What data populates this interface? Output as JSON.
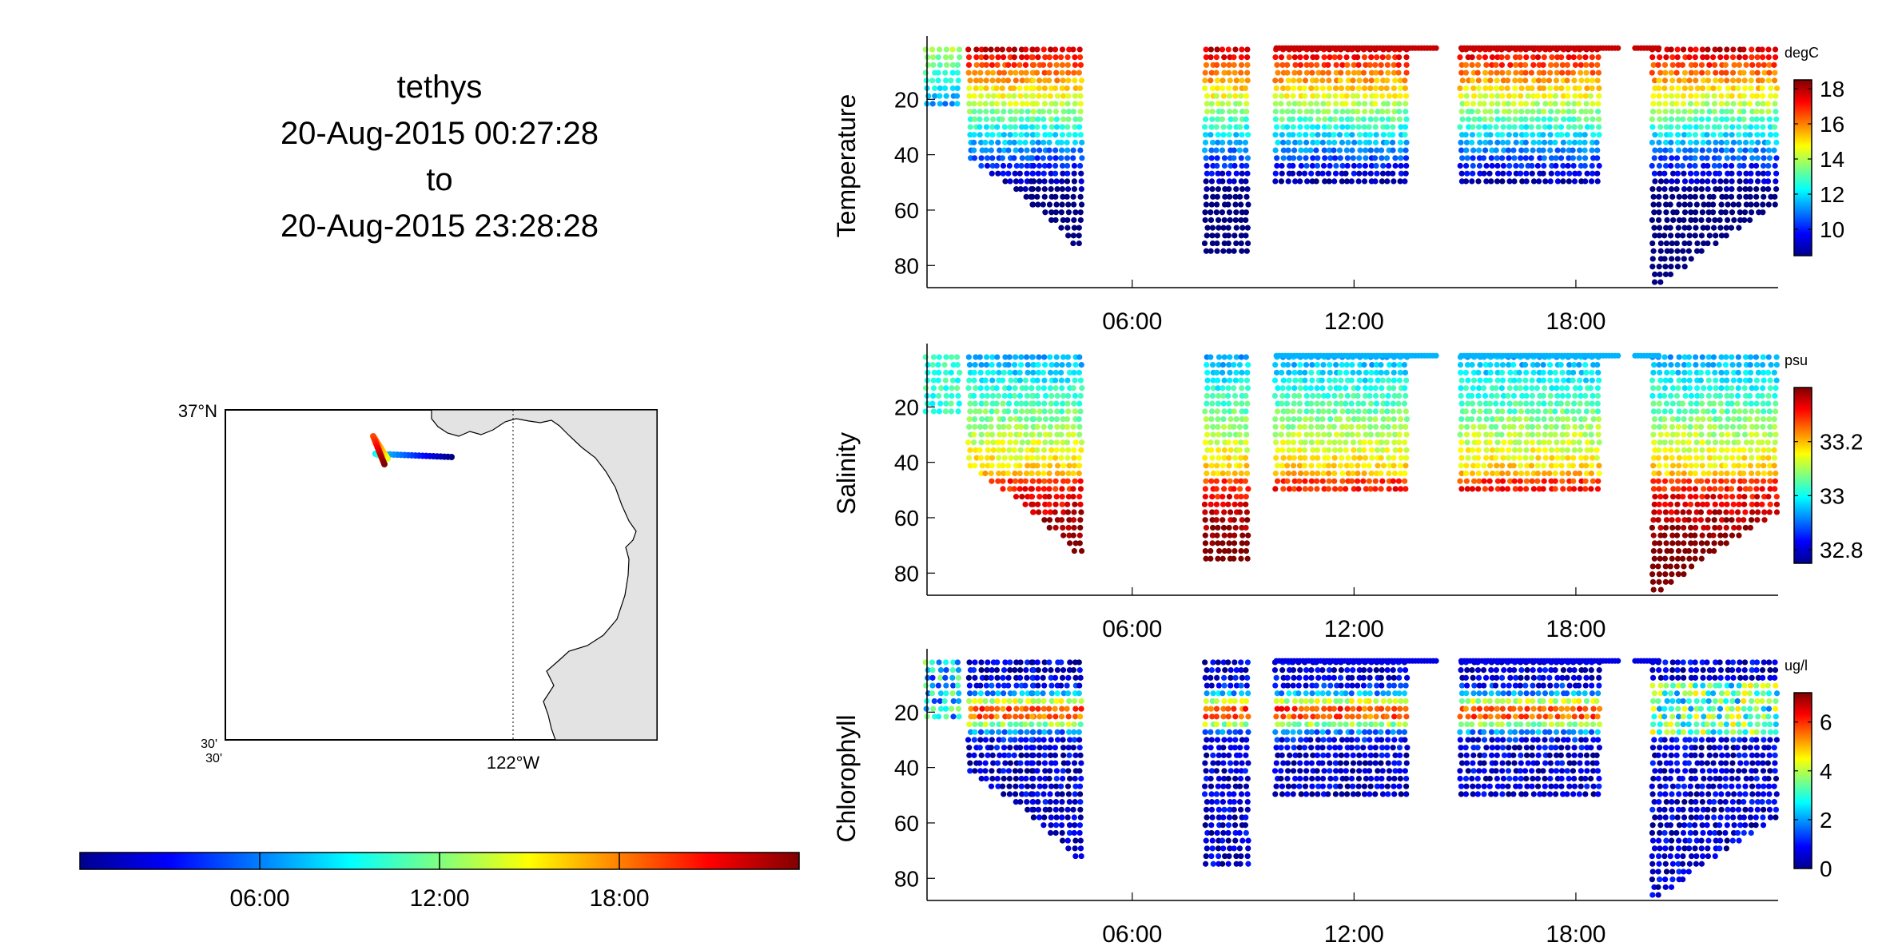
{
  "header": {
    "vehicle": "tethys",
    "start": "20-Aug-2015 00:27:28",
    "to": "to",
    "end": "20-Aug-2015 23:28:28"
  },
  "map": {
    "lat_top_label": "37°N",
    "lat_bottom_label": "30'",
    "lon_left_label": "30'",
    "lon_mid_label": "122°W",
    "land_color": "#e3e3e3"
  },
  "time_colorbar": {
    "ticks": [
      "06:00",
      "12:00",
      "18:00"
    ],
    "colormap": "jet"
  },
  "chart_data": [
    {
      "type": "scatter",
      "ylabel": "Temperature",
      "unit": "degC",
      "x_ticks": [
        "06:00",
        "12:00",
        "18:00"
      ],
      "y_ticks": [
        20,
        40,
        60,
        80
      ],
      "colorbar_ticks": [
        10,
        12,
        14,
        16,
        18
      ],
      "clim": [
        8.5,
        18.5
      ],
      "xlim_hours": [
        0.45,
        23.47
      ],
      "ylim": [
        0,
        88
      ],
      "y_reversed": true,
      "profiles": [
        {
          "t0": 0.45,
          "t1": 1.3,
          "max_depth": 22
        },
        {
          "t0": 1.6,
          "t1": 3.3,
          "max_depth_start": 42,
          "max_depth_end": 58
        },
        {
          "t0": 3.3,
          "t1": 4.6,
          "max_depth_start": 58,
          "max_depth_end": 74
        },
        {
          "t0": 8.0,
          "t1": 9.1,
          "max_depth": 77
        },
        {
          "t0": 9.9,
          "t1": 13.4,
          "max_depth": 50
        },
        {
          "t0": 14.9,
          "t1": 18.6,
          "max_depth": 50
        },
        {
          "t0": 20.1,
          "t1": 23.4,
          "max_depth_start": 88,
          "max_depth_end": 58
        }
      ]
    },
    {
      "type": "scatter",
      "ylabel": "Salinity",
      "unit": "psu",
      "x_ticks": [
        "06:00",
        "12:00",
        "18:00"
      ],
      "y_ticks": [
        20,
        40,
        60,
        80
      ],
      "colorbar_ticks": [
        32.8,
        33,
        33.2
      ],
      "clim": [
        32.75,
        33.4
      ],
      "xlim_hours": [
        0.45,
        23.47
      ],
      "ylim": [
        0,
        88
      ],
      "y_reversed": true
    },
    {
      "type": "scatter",
      "ylabel": "Chlorophyll",
      "unit": "ug/l",
      "x_ticks": [
        "06:00",
        "12:00",
        "18:00"
      ],
      "y_ticks": [
        20,
        40,
        60,
        80
      ],
      "colorbar_ticks": [
        0,
        2,
        4,
        6
      ],
      "clim": [
        0,
        7.2
      ],
      "xlim_hours": [
        0.45,
        23.47
      ],
      "ylim": [
        0,
        88
      ],
      "y_reversed": true
    }
  ]
}
